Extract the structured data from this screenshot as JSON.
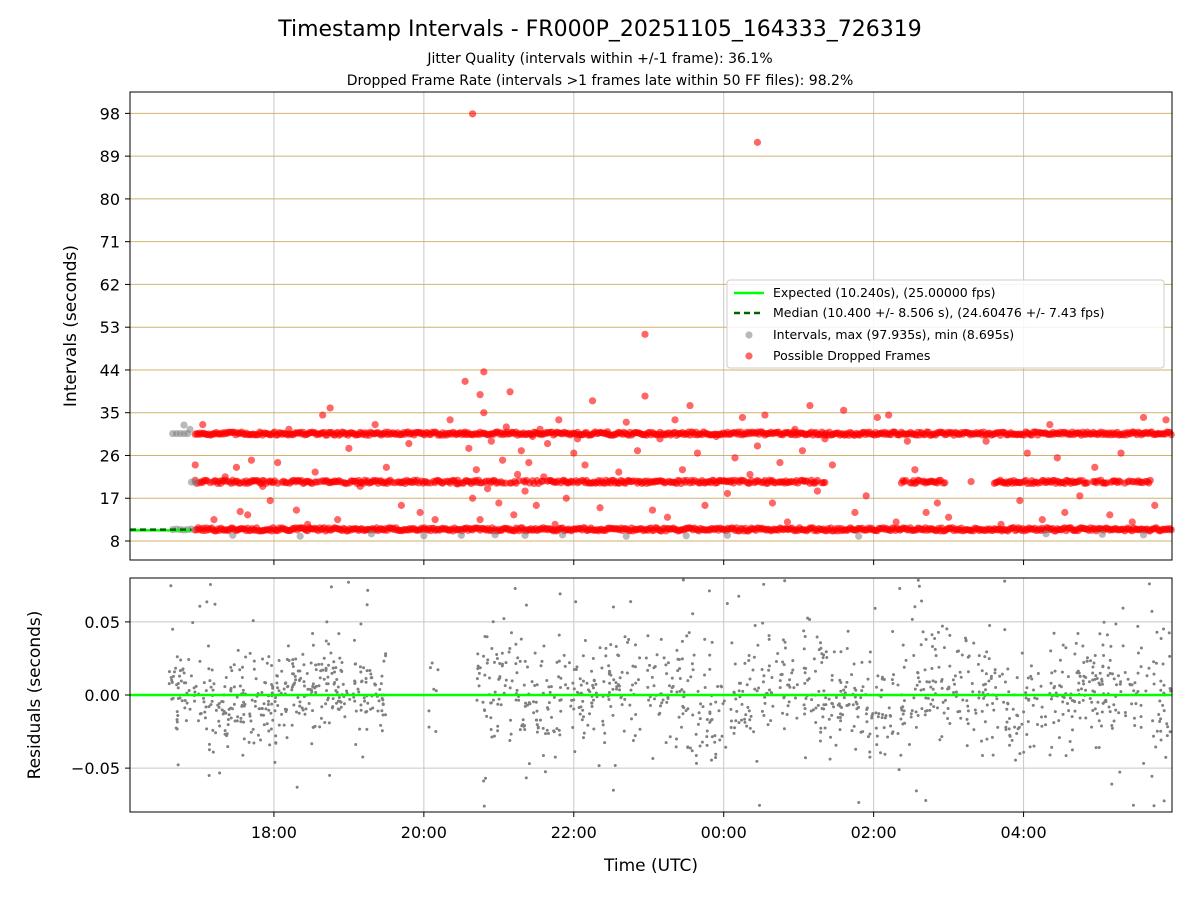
{
  "figure": {
    "title": "Timestamp Intervals - FR000P_20251105_164333_726319",
    "subtitle1": "Jitter Quality (intervals within +/-1 frame): 36.1%",
    "subtitle2": "Dropped Frame Rate (intervals >1 frames late within 50 FF files): 98.2%"
  },
  "colors": {
    "expected": "#00ff00",
    "median": "#006400",
    "intervals": "#808080",
    "dropped": "#ff0000",
    "hgrid": "#d4b26a",
    "vgrid": "#c8c8c8",
    "residuals": "#808080"
  },
  "chart_data": [
    {
      "type": "scatter",
      "name": "intervals",
      "title": "Timestamp Intervals - FR000P_20251105_164333_726319",
      "ylabel": "Intervals (seconds)",
      "xlabel": "",
      "x_units": "hours since 16:00 UTC on day 0",
      "xlim": [
        0.08,
        13.98
      ],
      "ylim": [
        4.0,
        102.5
      ],
      "yticks": [
        8,
        17,
        26,
        35,
        44,
        53,
        62,
        71,
        80,
        89,
        98
      ],
      "ytick_labels": [
        "8",
        "17",
        "26",
        "35",
        "44",
        "53",
        "62",
        "71",
        "80",
        "89",
        "98"
      ],
      "xticks": [
        2,
        4,
        6,
        8,
        10,
        12
      ],
      "legend_position": "center-right",
      "expected": {
        "label": "Expected (10.240s), (25.00000 fps)",
        "y": 10.24,
        "x_end": 0.9
      },
      "median": {
        "label": "Median (10.400 +/- 8.506 s), (24.60476 +/- 7.43 fps)",
        "y": 10.4,
        "x_end": 0.9
      },
      "intervals_label": "Intervals, max (97.935s), min (8.695s)",
      "dropped_label": "Possible Dropped Frames",
      "bands": [
        {
          "name": "10s band",
          "y": 10.45,
          "x_start": 0.95,
          "x_end": 13.98,
          "gaps": []
        },
        {
          "name": "20s band",
          "y": 20.45,
          "x_start": 0.95,
          "x_end": 13.7,
          "gaps": [
            [
              9.35,
              10.35
            ],
            [
              10.95,
              11.6
            ]
          ]
        },
        {
          "name": "30s band",
          "y": 30.6,
          "x_start": 0.95,
          "x_end": 13.98,
          "gaps": []
        }
      ],
      "grey_points": [
        [
          0.65,
          30.6
        ],
        [
          0.7,
          30.6
        ],
        [
          0.75,
          30.6
        ],
        [
          0.8,
          30.6
        ],
        [
          0.85,
          30.6
        ],
        [
          0.88,
          31.5
        ],
        [
          0.8,
          32.4
        ],
        [
          0.9,
          20.4
        ],
        [
          0.95,
          20.4
        ],
        [
          0.65,
          10.4
        ],
        [
          0.7,
          10.5
        ],
        [
          0.75,
          10.4
        ],
        [
          0.8,
          10.3
        ],
        [
          0.85,
          10.4
        ],
        [
          0.9,
          10.5
        ],
        [
          1.45,
          9.2
        ],
        [
          2.35,
          9.0
        ],
        [
          3.3,
          9.5
        ],
        [
          4.0,
          9.1
        ],
        [
          4.5,
          9.2
        ],
        [
          4.95,
          9.3
        ],
        [
          5.35,
          9.2
        ],
        [
          5.85,
          9.3
        ],
        [
          6.7,
          9.0
        ],
        [
          7.5,
          9.1
        ],
        [
          8.05,
          9.2
        ],
        [
          9.8,
          9.0
        ],
        [
          12.3,
          9.5
        ],
        [
          13.05,
          9.4
        ],
        [
          13.6,
          9.3
        ]
      ],
      "dropped_points": [
        [
          4.65,
          97.9
        ],
        [
          8.45,
          91.9
        ],
        [
          6.95,
          51.5
        ],
        [
          4.8,
          43.6
        ],
        [
          4.55,
          41.6
        ],
        [
          4.75,
          38.8
        ],
        [
          5.15,
          39.4
        ],
        [
          0.95,
          24.0
        ],
        [
          1.05,
          32.5
        ],
        [
          1.2,
          12.5
        ],
        [
          1.35,
          21.5
        ],
        [
          1.5,
          23.5
        ],
        [
          1.55,
          14.2
        ],
        [
          1.65,
          13.5
        ],
        [
          1.7,
          25.0
        ],
        [
          1.85,
          19.5
        ],
        [
          1.95,
          16.5
        ],
        [
          2.05,
          24.5
        ],
        [
          2.2,
          31.5
        ],
        [
          2.3,
          14.5
        ],
        [
          2.45,
          11.5
        ],
        [
          2.55,
          22.5
        ],
        [
          2.65,
          34.5
        ],
        [
          2.75,
          36.0
        ],
        [
          2.85,
          12.5
        ],
        [
          3.0,
          27.5
        ],
        [
          3.15,
          19.5
        ],
        [
          3.35,
          32.5
        ],
        [
          3.5,
          23.5
        ],
        [
          3.7,
          15.5
        ],
        [
          3.8,
          28.5
        ],
        [
          3.95,
          14.0
        ],
        [
          4.15,
          12.5
        ],
        [
          4.35,
          33.5
        ],
        [
          4.45,
          20.0
        ],
        [
          4.55,
          30.5
        ],
        [
          4.6,
          27.5
        ],
        [
          4.65,
          17.0
        ],
        [
          4.7,
          23.0
        ],
        [
          4.75,
          12.5
        ],
        [
          4.8,
          35.0
        ],
        [
          4.85,
          19.0
        ],
        [
          4.9,
          29.0
        ],
        [
          5.0,
          16.0
        ],
        [
          5.05,
          25.0
        ],
        [
          5.1,
          32.0
        ],
        [
          5.2,
          13.5
        ],
        [
          5.25,
          22.0
        ],
        [
          5.3,
          27.0
        ],
        [
          5.35,
          18.5
        ],
        [
          5.4,
          24.5
        ],
        [
          5.45,
          30.0
        ],
        [
          5.5,
          15.5
        ],
        [
          5.55,
          31.5
        ],
        [
          5.6,
          21.5
        ],
        [
          5.65,
          28.5
        ],
        [
          5.75,
          11.5
        ],
        [
          5.8,
          33.5
        ],
        [
          5.9,
          17.0
        ],
        [
          6.0,
          26.5
        ],
        [
          6.05,
          29.5
        ],
        [
          6.15,
          24.0
        ],
        [
          6.25,
          37.5
        ],
        [
          6.35,
          15.0
        ],
        [
          6.45,
          31.0
        ],
        [
          6.6,
          22.5
        ],
        [
          6.7,
          33.0
        ],
        [
          6.85,
          27.0
        ],
        [
          6.95,
          38.5
        ],
        [
          7.05,
          14.5
        ],
        [
          7.15,
          29.5
        ],
        [
          7.25,
          13.0
        ],
        [
          7.35,
          33.5
        ],
        [
          7.45,
          23.0
        ],
        [
          7.55,
          36.5
        ],
        [
          7.65,
          26.5
        ],
        [
          7.75,
          15.5
        ],
        [
          7.9,
          30.0
        ],
        [
          8.05,
          18.0
        ],
        [
          8.15,
          25.5
        ],
        [
          8.25,
          34.0
        ],
        [
          8.35,
          22.0
        ],
        [
          8.45,
          28.0
        ],
        [
          8.55,
          34.5
        ],
        [
          8.65,
          16.0
        ],
        [
          8.75,
          24.5
        ],
        [
          8.85,
          12.0
        ],
        [
          8.95,
          31.5
        ],
        [
          9.05,
          27.0
        ],
        [
          9.15,
          36.5
        ],
        [
          9.25,
          18.5
        ],
        [
          9.35,
          29.5
        ],
        [
          9.45,
          24.0
        ],
        [
          9.6,
          35.5
        ],
        [
          9.75,
          14.0
        ],
        [
          9.9,
          17.5
        ],
        [
          10.05,
          34.0
        ],
        [
          10.2,
          34.5
        ],
        [
          10.3,
          12.0
        ],
        [
          10.45,
          29.0
        ],
        [
          10.55,
          23.0
        ],
        [
          10.7,
          14.0
        ],
        [
          10.85,
          16.0
        ],
        [
          11.0,
          13.0
        ],
        [
          11.3,
          20.5
        ],
        [
          11.5,
          29.0
        ],
        [
          11.7,
          11.5
        ],
        [
          11.95,
          16.5
        ],
        [
          12.05,
          26.5
        ],
        [
          12.25,
          12.5
        ],
        [
          12.35,
          32.5
        ],
        [
          12.45,
          25.5
        ],
        [
          12.55,
          14.0
        ],
        [
          12.75,
          17.5
        ],
        [
          12.95,
          23.5
        ],
        [
          13.15,
          13.5
        ],
        [
          13.3,
          26.5
        ],
        [
          13.45,
          12.0
        ],
        [
          13.6,
          34.0
        ],
        [
          13.75,
          15.5
        ],
        [
          13.9,
          33.5
        ]
      ]
    },
    {
      "type": "scatter",
      "name": "residuals",
      "title": "",
      "ylabel": "Residuals (seconds)",
      "xlabel": "Time (UTC)",
      "x_units": "hours since 16:00 UTC on day 0",
      "xlim": [
        0.08,
        13.98
      ],
      "ylim": [
        -0.08,
        0.08
      ],
      "yticks": [
        -0.05,
        0.0,
        0.05
      ],
      "ytick_labels": [
        "−0.05",
        "0.00",
        "0.05"
      ],
      "xticks": [
        2,
        4,
        6,
        8,
        10,
        12
      ],
      "xtick_labels": [
        "18:00",
        "20:00",
        "22:00",
        "00:00",
        "02:00",
        "04:00"
      ],
      "zero_line": 0.0,
      "clusters": [
        {
          "x_start": 0.6,
          "x_end": 3.5,
          "count": 380,
          "spread": 0.022,
          "extra": 40
        },
        {
          "x_start": 4.05,
          "x_end": 4.2,
          "count": 6,
          "spread": 0.045,
          "extra": 2
        },
        {
          "x_start": 4.7,
          "x_end": 13.98,
          "count": 980,
          "spread": 0.028,
          "extra": 90
        }
      ]
    }
  ]
}
